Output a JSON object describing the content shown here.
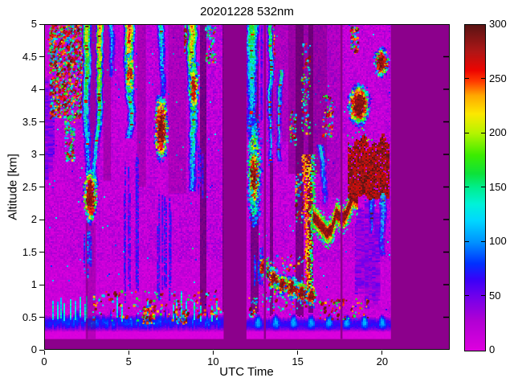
{
  "figure": {
    "title": "20201228 532nm",
    "background": "#FFFFFF"
  },
  "chart_data": {
    "type": "heatmap",
    "title": "20201228 532nm",
    "xlabel": "UTC Time",
    "ylabel": "Altitude [km]",
    "x_range_hours": [
      0,
      24
    ],
    "x_ticks": [
      0,
      5,
      10,
      15,
      20
    ],
    "y_range_km": [
      0,
      5
    ],
    "y_ticks": [
      0,
      0.5,
      1,
      1.5,
      2,
      2.5,
      3,
      3.5,
      4,
      4.5,
      5
    ],
    "grid": false,
    "colorbar": {
      "position": "right",
      "range": [
        0,
        300
      ],
      "ticks": [
        0,
        50,
        100,
        150,
        200,
        250,
        300
      ],
      "stops": [
        [
          0,
          "#DE00DE"
        ],
        [
          28,
          "#B000D4"
        ],
        [
          50,
          "#7000EC"
        ],
        [
          65,
          "#3A00F8"
        ],
        [
          80,
          "#0030FF"
        ],
        [
          100,
          "#0092FF"
        ],
        [
          120,
          "#00D8FF"
        ],
        [
          135,
          "#00F2D8"
        ],
        [
          150,
          "#00EE8E"
        ],
        [
          163,
          "#0CE23A"
        ],
        [
          180,
          "#3CEC00"
        ],
        [
          200,
          "#B4F400"
        ],
        [
          218,
          "#FCE800"
        ],
        [
          235,
          "#FFA800"
        ],
        [
          248,
          "#FF3A00"
        ],
        [
          258,
          "#EE0400"
        ],
        [
          275,
          "#B01616"
        ],
        [
          300,
          "#5A1414"
        ]
      ]
    },
    "no_data_color": "#8C008C",
    "data_segments_hours": [
      [
        0,
        10.62
      ],
      [
        11.97,
        20.52
      ]
    ],
    "thin_gap_lines_hours": [
      13.05,
      17.58
    ],
    "surface_blind_zone_km": 0.165,
    "boundary_layer": {
      "band_km": [
        0.29,
        0.55
      ],
      "left_spiky": true,
      "right_wave_period_hours": 1.05
    },
    "features": {
      "speck_clusters": [
        {
          "t": [
            0.35,
            2.35
          ],
          "h": [
            3.55,
            5
          ],
          "n": 900,
          "hot": 0.55
        },
        {
          "t": [
            1.25,
            1.8
          ],
          "h": [
            2.9,
            3.6
          ],
          "n": 120,
          "hot": 0.3
        },
        {
          "t": [
            0.25,
            0.65
          ],
          "h": [
            4.35,
            4.95
          ],
          "n": 60,
          "hot": 0.6
        },
        {
          "t": [
            8.3,
            9.0
          ],
          "h": [
            4.55,
            5
          ],
          "n": 200,
          "hot": 0.6
        },
        {
          "t": [
            9.55,
            10.15
          ],
          "h": [
            4.4,
            5
          ],
          "n": 70,
          "hot": 0.25
        },
        {
          "t": [
            11.97,
            12.5
          ],
          "h": [
            4.55,
            5
          ],
          "n": 140,
          "hot": 0.5
        },
        {
          "t": [
            13.3,
            13.65
          ],
          "h": [
            4.3,
            5
          ],
          "n": 50,
          "hot": 0.3
        },
        {
          "t": [
            14.55,
            14.9
          ],
          "h": [
            3.15,
            3.65
          ],
          "n": 45,
          "hot": 0.5
        },
        {
          "t": [
            14.85,
            15.3
          ],
          "h": [
            1.9,
            2.7
          ],
          "n": 50,
          "hot": 0.4
        },
        {
          "t": [
            15.25,
            15.75
          ],
          "h": [
            3.3,
            4.7
          ],
          "n": 90,
          "hot": 0.35
        },
        {
          "t": [
            18.15,
            18.6
          ],
          "h": [
            4.55,
            4.95
          ],
          "n": 60,
          "hot": 0.5
        },
        {
          "t": [
            16.5,
            17.1
          ],
          "h": [
            3.25,
            3.9
          ],
          "n": 70,
          "hot": 0.55
        },
        {
          "t": [
            12.9,
            15.85
          ],
          "h": [
            0.6,
            1.45
          ],
          "n": 160,
          "hot": 0.45
        },
        {
          "t": [
            2.9,
            10.5
          ],
          "h": [
            0.45,
            0.9
          ],
          "n": 150,
          "hot": 0.5
        },
        {
          "t": [
            5.85,
            6.55
          ],
          "h": [
            0.4,
            0.68
          ],
          "n": 60,
          "hot": 0.75
        },
        {
          "t": [
            7.8,
            8.5
          ],
          "h": [
            0.4,
            0.62
          ],
          "n": 50,
          "hot": 0.7
        },
        {
          "t": [
            16.3,
            19.2
          ],
          "h": [
            0.45,
            0.78
          ],
          "n": 70,
          "hot": 0.5
        },
        {
          "t": [
            12.1,
            12.6
          ],
          "h": [
            0.5,
            0.8
          ],
          "n": 25,
          "hot": 0.4
        }
      ],
      "virga_streaks": [
        {
          "t": 2.5,
          "h": [
            2.75,
            5
          ],
          "w": 0.2,
          "hot": 0.7
        },
        {
          "t": 3.28,
          "h": [
            2.55,
            5
          ],
          "w": 0.17,
          "hot": 0.85
        },
        {
          "t": 3.97,
          "h": [
            4.2,
            5
          ],
          "w": 0.1,
          "hot": 0.3
        },
        {
          "t": 5.0,
          "h": [
            3.25,
            5
          ],
          "w": 0.26,
          "hot": 0.9
        },
        {
          "t": 6.85,
          "h": [
            3.9,
            5
          ],
          "w": 0.14,
          "hot": 0.4
        },
        {
          "t": 8.75,
          "h": [
            2.45,
            5
          ],
          "w": 0.24,
          "hot": 0.8
        },
        {
          "t": 12.35,
          "h": [
            3.3,
            5
          ],
          "w": 0.3,
          "hot": 0.55
        },
        {
          "t": 13.38,
          "h": [
            2.9,
            5
          ],
          "w": 0.09,
          "hot": 0.55
        },
        {
          "t": 14.0,
          "h": [
            2.9,
            4.3
          ],
          "w": 0.08,
          "hot": 0.5
        },
        {
          "t": 16.35,
          "h": [
            2.25,
            3.15
          ],
          "w": 0.12,
          "hot": 0.35
        },
        {
          "t": 19.3,
          "h": [
            1.8,
            2.5
          ],
          "w": 0.1,
          "hot": 0.3
        },
        {
          "t": 20.05,
          "h": [
            1.45,
            2.45
          ],
          "w": 0.15,
          "hot": 0.35
        }
      ],
      "cloud_blobs": [
        {
          "t": [
            2.3,
            3.05
          ],
          "h": [
            1.95,
            2.8
          ],
          "style": "maroon"
        },
        {
          "t": [
            6.5,
            7.25
          ],
          "h": [
            2.9,
            3.95
          ],
          "style": "maroon"
        },
        {
          "t": [
            4.78,
            5.25
          ],
          "h": [
            3.9,
            4.6
          ],
          "style": "mixed"
        },
        {
          "t": [
            8.55,
            9.05
          ],
          "h": [
            3.55,
            4.5
          ],
          "style": "mixed"
        },
        {
          "t": [
            12.0,
            12.75
          ],
          "h": [
            1.9,
            3.6
          ],
          "style": "green"
        },
        {
          "t": [
            12.12,
            12.6
          ],
          "h": [
            2.2,
            3.15
          ],
          "style": "maroon"
        },
        {
          "t": [
            17.95,
            19.2
          ],
          "h": [
            3.45,
            4.1
          ],
          "style": "maroon"
        },
        {
          "t": [
            19.5,
            20.3
          ],
          "h": [
            4.2,
            4.65
          ],
          "style": "maroon"
        }
      ],
      "blob_chain": {
        "pts": [
          [
            12.95,
            1.28
          ],
          [
            13.5,
            1.12
          ],
          [
            14.05,
            1.02
          ],
          [
            14.6,
            0.97
          ],
          [
            15.15,
            0.9
          ],
          [
            15.75,
            0.84
          ]
        ],
        "rt": 0.27,
        "rh": 0.17,
        "style": "maroon"
      },
      "aerosol_layers": [
        {
          "pts": [
            [
              15.95,
              2.05
            ],
            [
              16.35,
              1.93
            ],
            [
              16.75,
              1.78
            ],
            [
              17.05,
              1.86
            ],
            [
              17.3,
              2.1
            ],
            [
              17.55,
              2.04
            ]
          ],
          "th": 0.3
        },
        {
          "pts": [
            [
              17.66,
              2.0
            ],
            [
              17.95,
              2.1
            ],
            [
              18.3,
              2.35
            ],
            [
              18.55,
              2.3
            ]
          ],
          "th": 0.28
        }
      ],
      "dense_masses": [
        {
          "t": [
            18.0,
            20.38
          ],
          "h": [
            2.35,
            3.2
          ],
          "fringe": true
        }
      ],
      "hot_column": {
        "t": [
          15.28,
          16.05
        ],
        "h": [
          0.95,
          3.0
        ]
      },
      "blue_tails": [
        {
          "t": [
            4.75,
            5.6
          ],
          "h": [
            0.6,
            3.2
          ],
          "n": 8,
          "v": 60
        },
        {
          "t": [
            6.6,
            7.6
          ],
          "h": [
            0.75,
            2.5
          ],
          "n": 8,
          "v": 60
        },
        {
          "t": [
            2.35,
            2.8
          ],
          "h": [
            1.1,
            1.95
          ],
          "n": 4,
          "v": 80
        },
        {
          "t": [
            12.1,
            12.95
          ],
          "h": [
            0.95,
            1.6
          ],
          "n": 6,
          "v": 70
        },
        {
          "t": [
            8.9,
            9.4
          ],
          "h": [
            2.3,
            3.3
          ],
          "n": 4,
          "v": 60
        },
        {
          "t": [
            18.3,
            20.45
          ],
          "h": [
            0.65,
            2.35
          ],
          "n": 16,
          "v": 40
        },
        {
          "t": [
            12.0,
            12.9
          ],
          "h": [
            3.5,
            5
          ],
          "n": 6,
          "v": 55
        },
        {
          "t": [
            0.05,
            0.5
          ],
          "h": [
            2.6,
            4.2
          ],
          "n": 4,
          "v": 45
        }
      ],
      "attenuation_shadows": [
        {
          "t": [
            2.45,
            3.1
          ],
          "h": [
            2.8,
            5
          ],
          "a": 0.5
        },
        {
          "t": [
            3.5,
            3.95
          ],
          "h": [
            2.6,
            5
          ],
          "a": 0.35
        },
        {
          "t": [
            5.5,
            6.02
          ],
          "h": [
            2.5,
            5
          ],
          "a": 0.3
        },
        {
          "t": [
            7.35,
            8.4
          ],
          "h": [
            2.4,
            5
          ],
          "a": 0.25
        },
        {
          "t": [
            2.45,
            3.05
          ],
          "h": [
            0.165,
            1.95
          ],
          "a": 0.3
        },
        {
          "t": [
            2.49,
            2.58
          ],
          "h": [
            0.165,
            2.0
          ],
          "a": 0.45
        },
        {
          "t": [
            14.45,
            16.75
          ],
          "h": [
            2.7,
            5
          ],
          "a": 0.45
        },
        {
          "t": [
            13.55,
            14.45
          ],
          "h": [
            3.2,
            5
          ],
          "a": 0.22
        },
        {
          "t": [
            16.78,
            17.55
          ],
          "h": [
            2.35,
            5
          ],
          "a": 0.18
        }
      ]
    }
  }
}
